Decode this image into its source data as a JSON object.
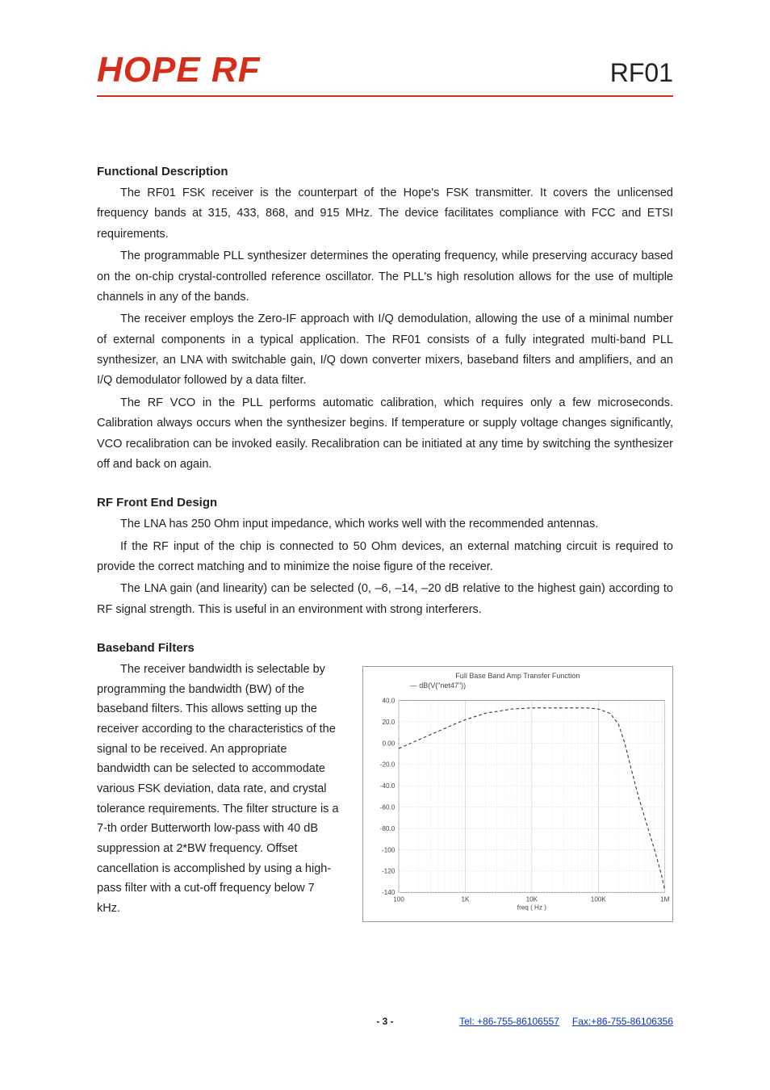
{
  "header": {
    "logo": "HOPE RF",
    "product": "RF01"
  },
  "sections": {
    "func_desc": {
      "title": "Functional Description",
      "p1": "The RF01 FSK receiver is the counterpart of the Hope's FSK transmitter. It covers the unlicensed frequency bands at 315, 433, 868, and 915 MHz. The device facilitates compliance with FCC and ETSI requirements.",
      "p2": "The programmable PLL synthesizer determines the operating frequency, while preserving accuracy based on the on-chip crystal-controlled reference oscillator. The PLL's high resolution allows for the use of multiple channels in any of the bands.",
      "p3": "The receiver employs the Zero-IF approach with I/Q demodulation, allowing the use of a minimal number of external components in a typical application. The RF01 consists of a fully integrated multi-band PLL synthesizer, an LNA with switchable gain, I/Q down converter mixers, baseband filters and amplifiers, and an I/Q demodulator followed by a data filter.",
      "p4": "The RF VCO in the PLL performs automatic calibration, which requires only a few microseconds. Calibration always occurs when the synthesizer begins. If temperature or supply voltage changes significantly, VCO recalibration can be invoked easily. Recalibration can be initiated at any time by switching the synthesizer off and back on again."
    },
    "rf_front": {
      "title": "RF Front End Design",
      "p1": "The LNA has 250 Ohm input impedance, which works well with the recommended antennas.",
      "p2": "If the RF input of the chip is connected to 50 Ohm devices, an external matching circuit is required to provide the correct matching and to minimize the noise figure of the receiver.",
      "p3": "The LNA gain (and linearity) can be selected (0, –6, –14, –20 dB relative to the highest gain) according to RF signal strength. This is useful in an environment with strong interferers."
    },
    "baseband": {
      "title": "Baseband Filters",
      "p1": "The receiver bandwidth is selectable by programming the bandwidth (BW) of the baseband filters. This allows setting up the receiver according to the characteristics of the signal to be received. An appropriate bandwidth can be selected to accommodate various FSK deviation, data rate, and crystal tolerance requirements. The filter structure is a 7-th order Butterworth low-pass with 40 dB suppression at 2*BW frequency. Offset cancellation is accomplished by using a high-pass filter with a cut-off frequency below 7 kHz."
    }
  },
  "chart": {
    "type": "line",
    "title": "Full Base Band Amp Transfer Function",
    "legend": "— dB(V(\"net47\"))",
    "xlabel": "freq ( Hz )",
    "xscale": "log",
    "xlim": [
      100,
      1000000
    ],
    "x_decade_labels": [
      "100",
      "1K",
      "10K",
      "100K",
      "1M"
    ],
    "ylim": [
      -140,
      40
    ],
    "ytick_step": 20,
    "ytick_labels": [
      "40.0",
      "20.0",
      "0.00",
      "-20.0",
      "-40.0",
      "-60.0",
      "-80.0",
      "-100",
      "-120",
      "-140"
    ],
    "background_color": "#ffffff",
    "grid_color": "#c8c8c8",
    "line_color": "#333333",
    "data": [
      {
        "f": 100,
        "db": -5
      },
      {
        "f": 300,
        "db": 8
      },
      {
        "f": 700,
        "db": 18
      },
      {
        "f": 1000,
        "db": 22
      },
      {
        "f": 2000,
        "db": 28
      },
      {
        "f": 5000,
        "db": 32
      },
      {
        "f": 10000,
        "db": 33
      },
      {
        "f": 30000,
        "db": 33
      },
      {
        "f": 70000,
        "db": 33
      },
      {
        "f": 100000,
        "db": 32
      },
      {
        "f": 150000,
        "db": 28
      },
      {
        "f": 200000,
        "db": 18
      },
      {
        "f": 250000,
        "db": 0
      },
      {
        "f": 300000,
        "db": -20
      },
      {
        "f": 400000,
        "db": -50
      },
      {
        "f": 500000,
        "db": -70
      },
      {
        "f": 700000,
        "db": -100
      },
      {
        "f": 900000,
        "db": -125
      },
      {
        "f": 1000000,
        "db": -138
      }
    ]
  },
  "footer": {
    "tel": "Tel: +86-755-86106557",
    "fax": "Fax:+86-755-86106356"
  },
  "page_number": "- 3 -"
}
